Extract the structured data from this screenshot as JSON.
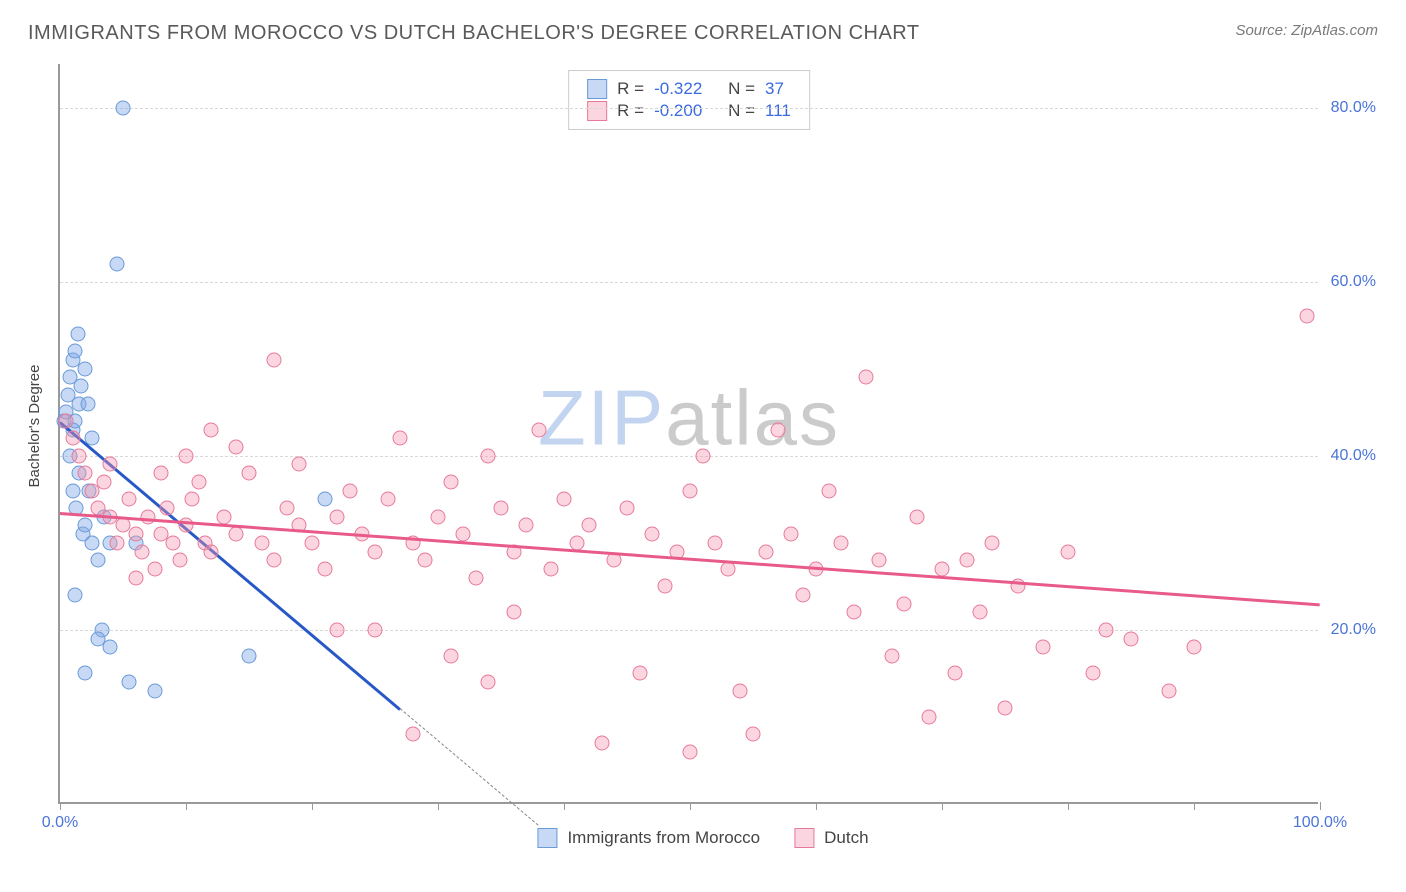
{
  "title": "IMMIGRANTS FROM MOROCCO VS DUTCH BACHELOR'S DEGREE CORRELATION CHART",
  "source": "Source: ZipAtlas.com",
  "watermark": {
    "zip": "ZIP",
    "atlas": "atlas"
  },
  "chart": {
    "type": "scatter",
    "background_color": "#ffffff",
    "grid_color": "#d8d8d8",
    "axis_color": "#999999",
    "tick_label_color": "#4a74d6",
    "ylabel": "Bachelor's Degree",
    "xlabel": "",
    "xlim": [
      0,
      100
    ],
    "ylim": [
      0,
      85
    ],
    "ytick_values": [
      20,
      40,
      60,
      80
    ],
    "ytick_labels": [
      "20.0%",
      "40.0%",
      "60.0%",
      "80.0%"
    ],
    "xtick_values": [
      0,
      10,
      20,
      30,
      40,
      50,
      60,
      70,
      80,
      90,
      100
    ],
    "xtick_labels_shown": {
      "0": "0.0%",
      "100": "100.0%"
    },
    "series": [
      {
        "name": "Immigrants from Morocco",
        "legend_label": "Immigrants from Morocco",
        "marker_fill": "rgba(130,170,230,0.45)",
        "marker_stroke": "#6a9ad8",
        "marker_size": 15,
        "R": "-0.322",
        "N": "37",
        "trend": {
          "color": "#2858c8",
          "x1": 0,
          "y1": 44,
          "x2": 27,
          "y2": 11,
          "dash_to_x": 38
        },
        "points": [
          [
            0.3,
            44
          ],
          [
            0.5,
            45
          ],
          [
            0.6,
            47
          ],
          [
            0.8,
            49
          ],
          [
            1.0,
            51
          ],
          [
            1.2,
            52
          ],
          [
            1.4,
            54
          ],
          [
            1.0,
            43
          ],
          [
            1.2,
            44
          ],
          [
            1.5,
            46
          ],
          [
            1.7,
            48
          ],
          [
            2.0,
            50
          ],
          [
            2.2,
            46
          ],
          [
            2.5,
            42
          ],
          [
            1.0,
            36
          ],
          [
            1.3,
            34
          ],
          [
            1.8,
            31
          ],
          [
            2.0,
            32
          ],
          [
            2.5,
            30
          ],
          [
            3.0,
            28
          ],
          [
            3.5,
            33
          ],
          [
            4.0,
            30
          ],
          [
            6.0,
            30
          ],
          [
            1.2,
            24
          ],
          [
            3.3,
            20
          ],
          [
            4.0,
            18
          ],
          [
            5.5,
            14
          ],
          [
            7.5,
            13
          ],
          [
            2.0,
            15
          ],
          [
            3.0,
            19
          ],
          [
            15.0,
            17
          ],
          [
            21.0,
            35
          ],
          [
            5.0,
            80
          ],
          [
            4.5,
            62
          ],
          [
            0.8,
            40
          ],
          [
            1.5,
            38
          ],
          [
            2.3,
            36
          ]
        ]
      },
      {
        "name": "Dutch",
        "legend_label": "Dutch",
        "marker_fill": "rgba(245,150,175,0.40)",
        "marker_stroke": "#e77a9a",
        "marker_size": 15,
        "R": "-0.200",
        "N": "111",
        "trend": {
          "color": "#e85a8a",
          "x1": 0,
          "y1": 33.5,
          "x2": 100,
          "y2": 23
        },
        "points": [
          [
            0.5,
            44
          ],
          [
            1.0,
            42
          ],
          [
            1.5,
            40
          ],
          [
            2.0,
            38
          ],
          [
            2.5,
            36
          ],
          [
            3.0,
            34
          ],
          [
            3.5,
            37
          ],
          [
            4.0,
            33
          ],
          [
            4.5,
            30
          ],
          [
            5.0,
            32
          ],
          [
            5.5,
            35
          ],
          [
            6.0,
            31
          ],
          [
            6.5,
            29
          ],
          [
            7.0,
            33
          ],
          [
            7.5,
            27
          ],
          [
            8.0,
            31
          ],
          [
            8.5,
            34
          ],
          [
            9.0,
            30
          ],
          [
            9.5,
            28
          ],
          [
            10.0,
            32
          ],
          [
            10.5,
            35
          ],
          [
            11.0,
            37
          ],
          [
            11.5,
            30
          ],
          [
            12.0,
            29
          ],
          [
            13.0,
            33
          ],
          [
            14.0,
            31
          ],
          [
            15.0,
            38
          ],
          [
            16.0,
            30
          ],
          [
            17.0,
            28
          ],
          [
            18.0,
            34
          ],
          [
            19.0,
            32
          ],
          [
            20.0,
            30
          ],
          [
            21.0,
            27
          ],
          [
            22.0,
            33
          ],
          [
            23.0,
            36
          ],
          [
            24.0,
            31
          ],
          [
            25.0,
            29
          ],
          [
            26.0,
            35
          ],
          [
            27.0,
            42
          ],
          [
            28.0,
            30
          ],
          [
            29.0,
            28
          ],
          [
            30.0,
            33
          ],
          [
            31.0,
            37
          ],
          [
            32.0,
            31
          ],
          [
            33.0,
            26
          ],
          [
            34.0,
            40
          ],
          [
            35.0,
            34
          ],
          [
            36.0,
            29
          ],
          [
            37.0,
            32
          ],
          [
            38.0,
            43
          ],
          [
            39.0,
            27
          ],
          [
            40.0,
            35
          ],
          [
            41.0,
            30
          ],
          [
            42.0,
            32
          ],
          [
            43.0,
            7
          ],
          [
            44.0,
            28
          ],
          [
            45.0,
            34
          ],
          [
            46.0,
            15
          ],
          [
            47.0,
            31
          ],
          [
            48.0,
            25
          ],
          [
            49.0,
            29
          ],
          [
            50.0,
            36
          ],
          [
            51.0,
            40
          ],
          [
            52.0,
            30
          ],
          [
            53.0,
            27
          ],
          [
            54.0,
            13
          ],
          [
            55.0,
            8
          ],
          [
            56.0,
            29
          ],
          [
            57.0,
            43
          ],
          [
            58.0,
            31
          ],
          [
            59.0,
            24
          ],
          [
            60.0,
            27
          ],
          [
            61.0,
            36
          ],
          [
            62.0,
            30
          ],
          [
            63.0,
            22
          ],
          [
            64.0,
            49
          ],
          [
            65.0,
            28
          ],
          [
            66.0,
            17
          ],
          [
            67.0,
            23
          ],
          [
            68.0,
            33
          ],
          [
            69.0,
            10
          ],
          [
            70.0,
            27
          ],
          [
            71.0,
            15
          ],
          [
            72.0,
            28
          ],
          [
            73.0,
            22
          ],
          [
            74.0,
            30
          ],
          [
            75.0,
            11
          ],
          [
            76.0,
            25
          ],
          [
            78.0,
            18
          ],
          [
            80.0,
            29
          ],
          [
            82.0,
            15
          ],
          [
            83.0,
            20
          ],
          [
            85.0,
            19
          ],
          [
            88.0,
            13
          ],
          [
            90.0,
            18
          ],
          [
            99.0,
            56
          ],
          [
            17.0,
            51
          ],
          [
            10.0,
            40
          ],
          [
            8.0,
            38
          ],
          [
            14.0,
            41
          ],
          [
            22.0,
            20
          ],
          [
            25.0,
            20
          ],
          [
            28.0,
            8
          ],
          [
            31.0,
            17
          ],
          [
            34.0,
            14
          ],
          [
            36.0,
            22
          ],
          [
            12.0,
            43
          ],
          [
            6.0,
            26
          ],
          [
            4.0,
            39
          ],
          [
            19.0,
            39
          ],
          [
            50.0,
            6
          ]
        ]
      }
    ]
  },
  "legend_top": {
    "rows": [
      {
        "swatch_fill": "rgba(130,170,230,0.45)",
        "swatch_stroke": "#6a9ad8",
        "r_label": "R =",
        "r_value": "-0.322",
        "n_label": "N =",
        "n_value": "37"
      },
      {
        "swatch_fill": "rgba(245,150,175,0.40)",
        "swatch_stroke": "#e77a9a",
        "r_label": "R =",
        "r_value": "-0.200",
        "n_label": "N =",
        "n_value": "111"
      }
    ]
  },
  "legend_bottom": {
    "items": [
      {
        "swatch_fill": "rgba(130,170,230,0.45)",
        "swatch_stroke": "#6a9ad8",
        "label": "Immigrants from Morocco"
      },
      {
        "swatch_fill": "rgba(245,150,175,0.40)",
        "swatch_stroke": "#e77a9a",
        "label": "Dutch"
      }
    ]
  }
}
